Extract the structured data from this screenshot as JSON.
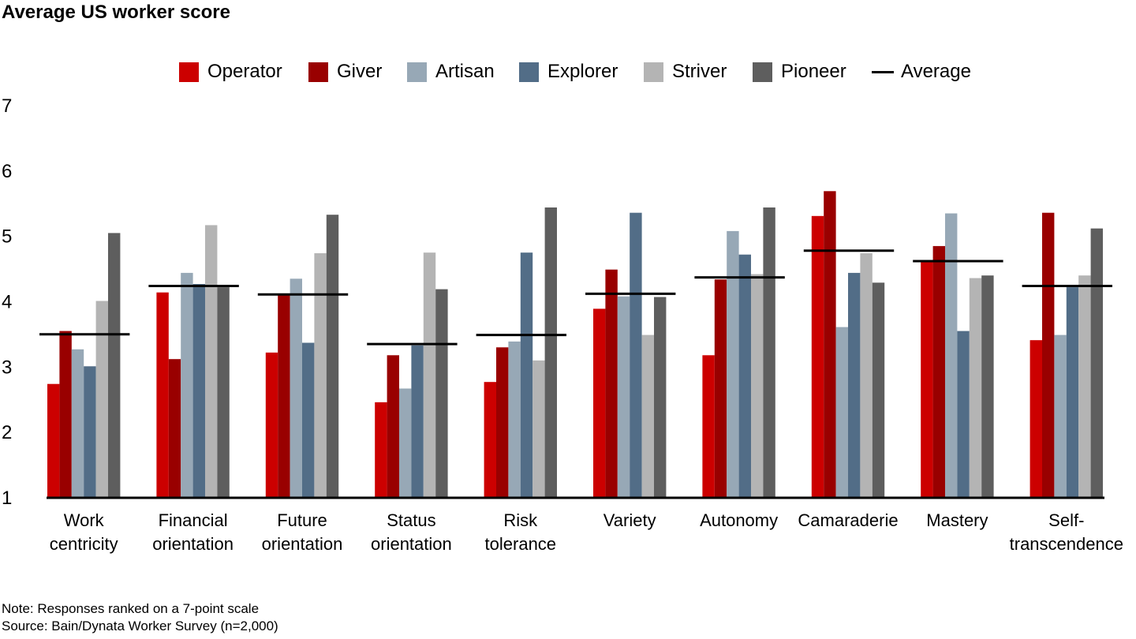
{
  "chart_data": {
    "type": "bar",
    "title": "Average US worker score",
    "xlabel": "",
    "ylabel": "",
    "ylim": [
      1,
      7
    ],
    "yticks": [
      "1",
      "2",
      "3",
      "4",
      "5",
      "6",
      "7"
    ],
    "grid": false,
    "legend_position": "top",
    "categories": [
      [
        "Work",
        "centricity"
      ],
      [
        "Financial",
        "orientation"
      ],
      [
        "Future",
        "orientation"
      ],
      [
        "Status",
        "orientation"
      ],
      [
        "Risk",
        "tolerance"
      ],
      [
        "Variety"
      ],
      [
        "Autonomy"
      ],
      [
        "Camaraderie"
      ],
      [
        "Mastery"
      ],
      [
        "Self-",
        "transcendence"
      ]
    ],
    "series": [
      {
        "name": "Operator",
        "color": "#CC0000",
        "values": [
          2.73,
          4.13,
          3.21,
          2.45,
          2.76,
          3.88,
          3.17,
          5.3,
          4.6,
          3.4
        ]
      },
      {
        "name": "Giver",
        "color": "#990000",
        "values": [
          3.54,
          3.11,
          4.1,
          3.17,
          3.29,
          4.48,
          4.33,
          5.68,
          4.84,
          5.35
        ]
      },
      {
        "name": "Artisan",
        "color": "#97A8B6",
        "values": [
          3.26,
          4.43,
          4.34,
          2.66,
          3.38,
          4.07,
          5.07,
          3.6,
          5.34,
          3.48
        ]
      },
      {
        "name": "Explorer",
        "color": "#526D87",
        "values": [
          3.0,
          4.26,
          3.36,
          3.32,
          4.74,
          5.35,
          4.71,
          4.43,
          3.54,
          4.21
        ]
      },
      {
        "name": "Striver",
        "color": "#B4B4B4",
        "values": [
          4.0,
          5.16,
          4.73,
          4.74,
          3.09,
          3.48,
          4.41,
          4.73,
          4.35,
          4.39
        ]
      },
      {
        "name": "Pioneer",
        "color": "#5E5E5E",
        "values": [
          5.04,
          4.21,
          5.32,
          4.18,
          5.43,
          4.06,
          5.43,
          4.28,
          4.39,
          5.11
        ]
      }
    ],
    "average": {
      "name": "Average",
      "color": "#000000",
      "values": [
        3.49,
        4.23,
        4.1,
        3.34,
        3.48,
        4.11,
        4.36,
        4.77,
        4.61,
        4.23
      ]
    }
  },
  "footer": {
    "note": "Note: Responses ranked on a 7-point scale",
    "source": "Source: Bain/Dynata Worker Survey (n=2,000)"
  }
}
